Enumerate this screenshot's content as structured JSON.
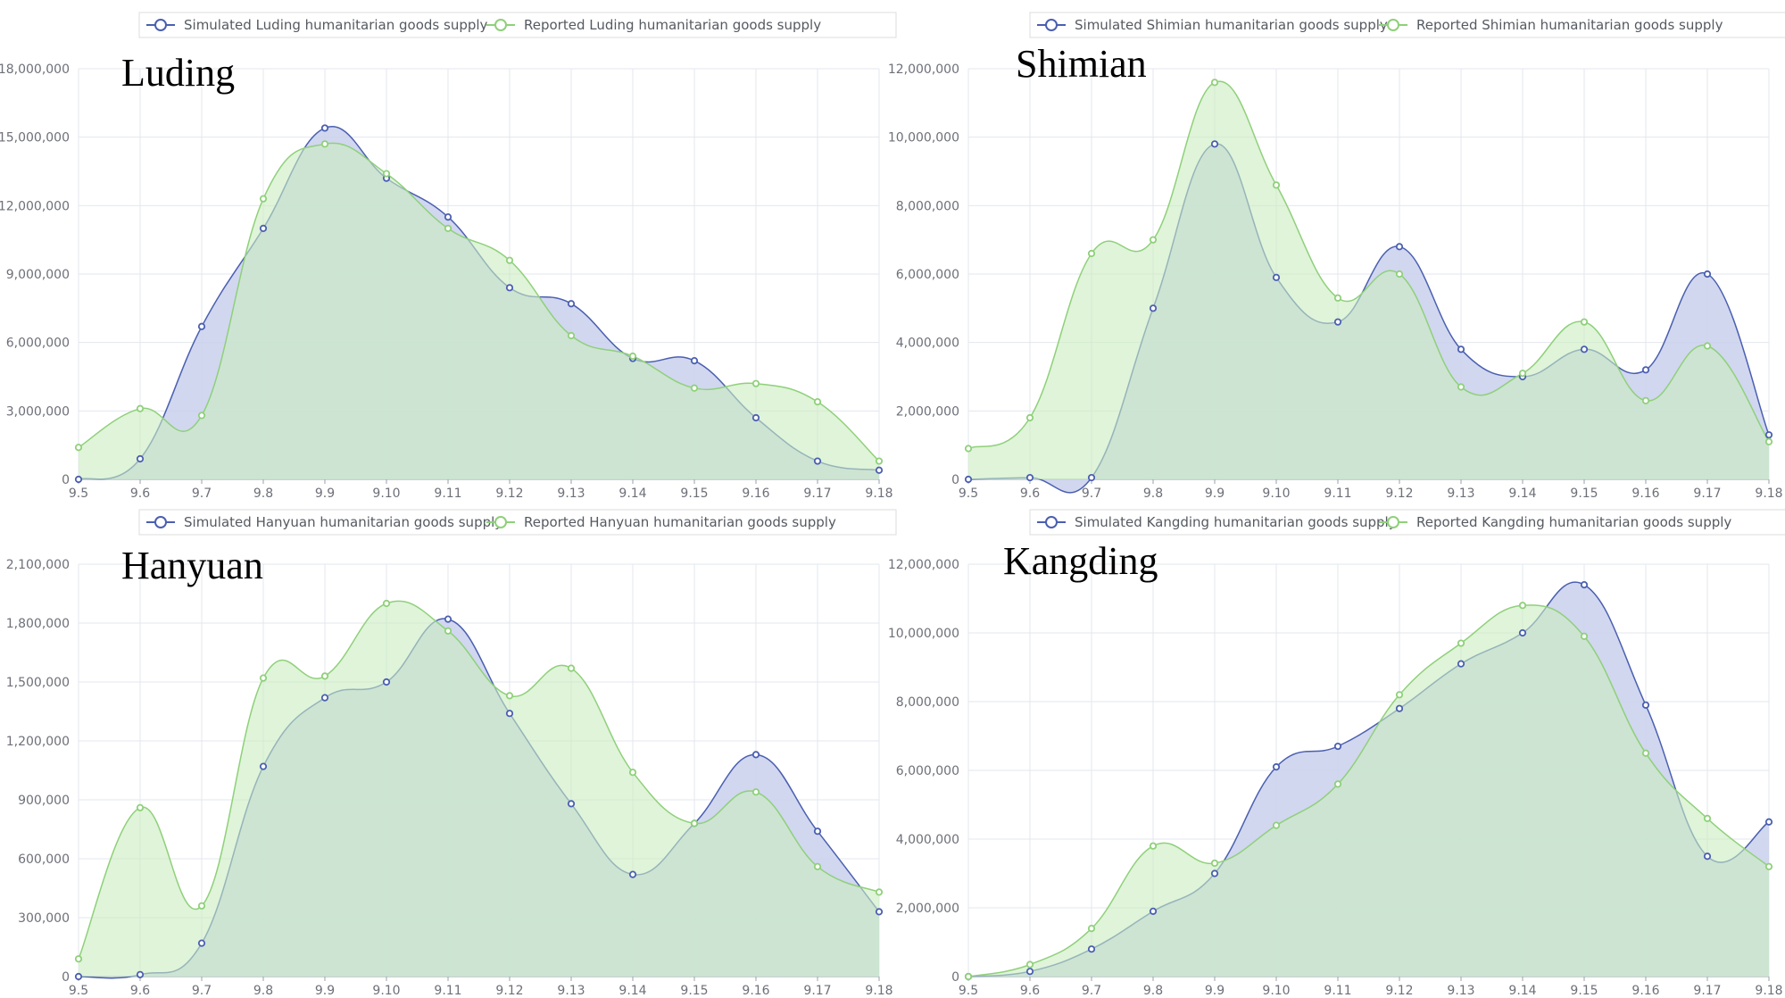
{
  "colors": {
    "simulated": "#4a5fb0",
    "simulated_fill": "#c9d0ec",
    "reported": "#8fd07a",
    "reported_fill": "#c9ecc0"
  },
  "chart_data": [
    {
      "type": "area",
      "title": "Luding",
      "categories": [
        "9.5",
        "9.6",
        "9.7",
        "9.8",
        "9.9",
        "9.10",
        "9.11",
        "9.12",
        "9.13",
        "9.14",
        "9.15",
        "9.16",
        "9.17",
        "9.18"
      ],
      "ylim": [
        0,
        18000000
      ],
      "yticks": [
        "0",
        "3,000,000",
        "6,000,000",
        "9,000,000",
        "12,000,000",
        "15,000,000",
        "18,000,000"
      ],
      "grid": true,
      "legend_position": "top",
      "series": [
        {
          "name": "Simulated Luding humanitarian goods supply",
          "values": [
            0,
            900000,
            6700000,
            11000000,
            15400000,
            13200000,
            11500000,
            8400000,
            7700000,
            5300000,
            5200000,
            2700000,
            800000,
            400000
          ]
        },
        {
          "name": "Reported Luding humanitarian goods supply",
          "values": [
            1400000,
            3100000,
            2800000,
            12300000,
            14700000,
            13400000,
            11000000,
            9600000,
            6300000,
            5400000,
            4000000,
            4200000,
            3400000,
            800000
          ]
        }
      ]
    },
    {
      "type": "area",
      "title": "Shimian",
      "categories": [
        "9.5",
        "9.6",
        "9.7",
        "9.8",
        "9.9",
        "9.10",
        "9.11",
        "9.12",
        "9.13",
        "9.14",
        "9.15",
        "9.16",
        "9.17",
        "9.18"
      ],
      "ylim": [
        0,
        12000000
      ],
      "yticks": [
        "0",
        "2,000,000",
        "4,000,000",
        "6,000,000",
        "8,000,000",
        "10,000,000",
        "12,000,000"
      ],
      "grid": true,
      "legend_position": "top",
      "series": [
        {
          "name": "Simulated Shimian humanitarian goods supply",
          "values": [
            0,
            50000,
            50000,
            5000000,
            9800000,
            5900000,
            4600000,
            6800000,
            3800000,
            3000000,
            3800000,
            3200000,
            6000000,
            1300000
          ]
        },
        {
          "name": "Reported Shimian humanitarian goods supply",
          "values": [
            900000,
            1800000,
            6600000,
            7000000,
            11600000,
            8600000,
            5300000,
            6000000,
            2700000,
            3100000,
            4600000,
            2300000,
            3900000,
            1100000
          ]
        }
      ]
    },
    {
      "type": "area",
      "title": "Hanyuan",
      "categories": [
        "9.5",
        "9.6",
        "9.7",
        "9.8",
        "9.9",
        "9.10",
        "9.11",
        "9.12",
        "9.13",
        "9.14",
        "9.15",
        "9.16",
        "9.17",
        "9.18"
      ],
      "ylim": [
        0,
        2100000
      ],
      "yticks": [
        "0",
        "300,000",
        "600,000",
        "900,000",
        "1,200,000",
        "1,500,000",
        "1,800,000",
        "2,100,000"
      ],
      "grid": true,
      "legend_position": "top",
      "series": [
        {
          "name": "Simulated Hanyuan humanitarian goods supply",
          "values": [
            0,
            10000,
            170000,
            1070000,
            1420000,
            1500000,
            1820000,
            1340000,
            880000,
            520000,
            780000,
            1130000,
            740000,
            330000
          ]
        },
        {
          "name": "Reported Hanyuan humanitarian goods supply",
          "values": [
            90000,
            860000,
            360000,
            1520000,
            1530000,
            1900000,
            1760000,
            1430000,
            1570000,
            1040000,
            780000,
            940000,
            560000,
            430000
          ]
        }
      ]
    },
    {
      "type": "area",
      "title": "Kangding",
      "categories": [
        "9.5",
        "9.6",
        "9.7",
        "9.8",
        "9.9",
        "9.10",
        "9.11",
        "9.12",
        "9.13",
        "9.14",
        "9.15",
        "9.16",
        "9.17",
        "9.18"
      ],
      "ylim": [
        0,
        12000000
      ],
      "yticks": [
        "0",
        "2,000,000",
        "4,000,000",
        "6,000,000",
        "8,000,000",
        "10,000,000",
        "12,000,000"
      ],
      "grid": true,
      "legend_position": "top",
      "series": [
        {
          "name": "Simulated Kangding humanitarian goods supply",
          "values": [
            0,
            150000,
            800000,
            1900000,
            3000000,
            6100000,
            6700000,
            7800000,
            9100000,
            10000000,
            11400000,
            7900000,
            3500000,
            4500000
          ]
        },
        {
          "name": "Reported Kangding humanitarian goods supply",
          "values": [
            0,
            350000,
            1400000,
            3800000,
            3300000,
            4400000,
            5600000,
            8200000,
            9700000,
            10800000,
            9900000,
            6500000,
            4600000,
            3200000
          ]
        }
      ]
    }
  ]
}
